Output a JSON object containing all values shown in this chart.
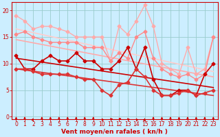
{
  "title": "",
  "xlabel": "Vent moyen/en rafales ( kn/h )",
  "xlim": [
    0,
    23
  ],
  "ylim": [
    0,
    20
  ],
  "yticks": [
    0,
    5,
    10,
    15,
    20
  ],
  "xticks": [
    0,
    1,
    2,
    3,
    4,
    5,
    6,
    7,
    8,
    9,
    10,
    11,
    12,
    13,
    14,
    15,
    16,
    17,
    18,
    19,
    20,
    21,
    22,
    23
  ],
  "bg_color": "#cceeff",
  "grid_color": "#99cccc",
  "line1": {
    "x": [
      0,
      1,
      2,
      3,
      4,
      5,
      6,
      7,
      8,
      9,
      10,
      11,
      12,
      13,
      14,
      15,
      16,
      17,
      18,
      19,
      20,
      21,
      22,
      23
    ],
    "y": [
      19,
      18,
      16.5,
      17,
      17,
      16.5,
      16,
      15,
      15,
      15,
      15,
      10.5,
      17,
      15.5,
      18,
      21,
      17,
      10,
      9,
      8,
      13,
      8,
      9,
      15
    ],
    "color": "#ffaaaa",
    "lw": 1.0,
    "marker": "D",
    "ms": 2.5
  },
  "line2": {
    "x": [
      0,
      1,
      2,
      3,
      4,
      5,
      6,
      7,
      8,
      9,
      10,
      11,
      12,
      13,
      14,
      15,
      16,
      17,
      18,
      19,
      20,
      21,
      22,
      23
    ],
    "y": [
      15.5,
      16,
      15,
      14.5,
      14,
      14,
      14,
      14,
      13,
      13,
      13,
      10.5,
      12,
      11,
      15,
      16,
      11,
      9,
      8,
      7.5,
      8,
      7,
      8,
      15
    ],
    "color": "#ff8888",
    "lw": 1.0,
    "marker": "D",
    "ms": 2.5
  },
  "line3": {
    "x": [
      0,
      1,
      2,
      3,
      4,
      5,
      6,
      7,
      8,
      9,
      10,
      11,
      12,
      13,
      14,
      15,
      16,
      17,
      18,
      19,
      20,
      21,
      22,
      23
    ],
    "y": [
      11.5,
      9,
      9,
      10.5,
      11.5,
      10.5,
      10.5,
      12,
      10.5,
      10.5,
      9,
      9,
      10.5,
      13,
      9,
      13,
      7,
      4,
      4,
      5,
      5,
      4,
      8,
      10
    ],
    "color": "#cc0000",
    "lw": 1.2,
    "marker": "D",
    "ms": 2.5
  },
  "line4": {
    "x": [
      0,
      1,
      2,
      3,
      4,
      5,
      6,
      7,
      8,
      9,
      10,
      11,
      12,
      13,
      14,
      15,
      16,
      17,
      18,
      19,
      20,
      21,
      22,
      23
    ],
    "y": [
      9,
      9,
      8.5,
      8,
      8,
      8,
      8,
      7.5,
      7,
      7,
      5,
      4,
      6,
      6.5,
      9,
      7.5,
      5,
      4,
      4,
      4.5,
      5,
      4,
      4.5,
      5
    ],
    "color": "#dd3333",
    "lw": 1.2,
    "marker": "D",
    "ms": 2.5
  },
  "trend1_x": [
    0,
    23
  ],
  "trend1_y": [
    16.5,
    8.5
  ],
  "trend1_color": "#ffcccc",
  "trend2_x": [
    0,
    23
  ],
  "trend2_y": [
    14.5,
    7.5
  ],
  "trend2_color": "#ffaaaa",
  "trend3_x": [
    0,
    23
  ],
  "trend3_y": [
    11.0,
    5.5
  ],
  "trend3_color": "#cc0000",
  "trend4_x": [
    0,
    23
  ],
  "trend4_y": [
    9.0,
    4.0
  ],
  "trend4_color": "#dd3333",
  "trend_lw": 1.2,
  "arrow_angles": [
    0,
    0,
    20,
    0,
    0,
    0,
    0,
    0,
    0,
    0,
    -20,
    -40,
    -50,
    -30,
    -20,
    10,
    0,
    0,
    0,
    0,
    0,
    0,
    0,
    0
  ],
  "arrow_color": "#cc0000"
}
